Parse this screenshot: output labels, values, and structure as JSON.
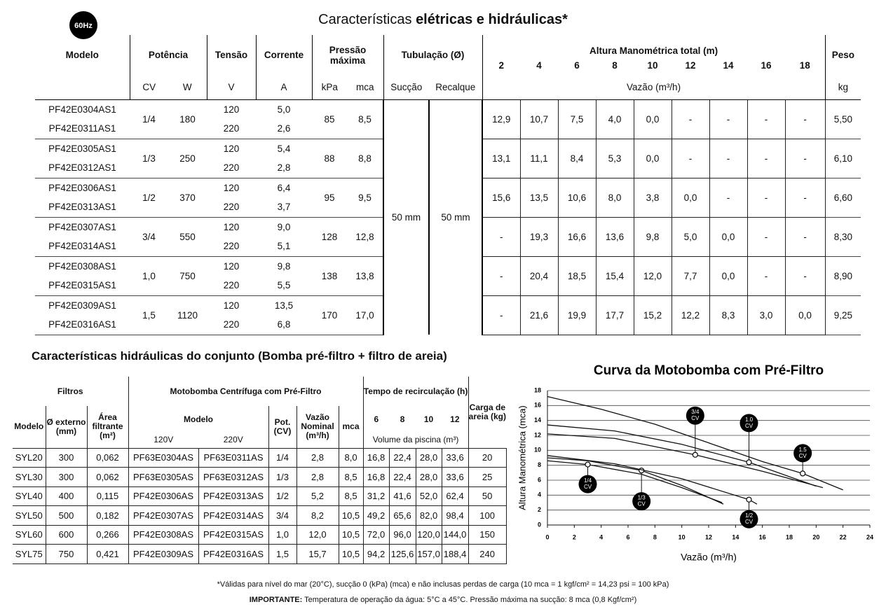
{
  "badge": "60Hz",
  "title": {
    "text": "Características",
    "bold": "elétricas e hidráulicas*"
  },
  "table1": {
    "headers": {
      "model": "Modelo",
      "power": "Potência",
      "voltage": "Tensão",
      "current": "Corrente",
      "pressure": "Pressão máxima",
      "pipe": "Tubulação (Ø)",
      "head": "Altura Manométrica total (m)",
      "weight": "Peso"
    },
    "heights": [
      2,
      4,
      6,
      8,
      10,
      12,
      14,
      16,
      18
    ],
    "units": {
      "cv": "CV",
      "w": "W",
      "v": "V",
      "a": "A",
      "kpa": "kPa",
      "mca": "mca",
      "suction": "Sucção",
      "discharge": "Recalque",
      "flow": "Vazão (m³/h)",
      "kg": "kg"
    },
    "pipe": {
      "suction": "50 mm",
      "discharge": "50 mm"
    },
    "rows": [
      {
        "models": [
          "PF42E0304AS1",
          "PF42E0311AS1"
        ],
        "cv": "1/4",
        "w": "180",
        "v": [
          "120",
          "220"
        ],
        "a": [
          "5,0",
          "2,6"
        ],
        "kpa": "85",
        "mca": "8,5",
        "flow": [
          "12,9",
          "10,7",
          "7,5",
          "4,0",
          "0,0",
          "-",
          "-",
          "-",
          "-"
        ],
        "weight": "5,50"
      },
      {
        "models": [
          "PF42E0305AS1",
          "PF42E0312AS1"
        ],
        "cv": "1/3",
        "w": "250",
        "v": [
          "120",
          "220"
        ],
        "a": [
          "5,4",
          "2,8"
        ],
        "kpa": "88",
        "mca": "8,8",
        "flow": [
          "13,1",
          "11,1",
          "8,4",
          "5,3",
          "0,0",
          "-",
          "-",
          "-",
          "-"
        ],
        "weight": "6,10"
      },
      {
        "models": [
          "PF42E0306AS1",
          "PF42E0313AS1"
        ],
        "cv": "1/2",
        "w": "370",
        "v": [
          "120",
          "220"
        ],
        "a": [
          "6,4",
          "3,7"
        ],
        "kpa": "95",
        "mca": "9,5",
        "flow": [
          "15,6",
          "13,5",
          "10,6",
          "8,0",
          "3,8",
          "0,0",
          "-",
          "-",
          "-"
        ],
        "weight": "6,60"
      },
      {
        "models": [
          "PF42E0307AS1",
          "PF42E0314AS1"
        ],
        "cv": "3/4",
        "w": "550",
        "v": [
          "120",
          "220"
        ],
        "a": [
          "9,0",
          "5,1"
        ],
        "kpa": "128",
        "mca": "12,8",
        "flow": [
          "-",
          "19,3",
          "16,6",
          "13,6",
          "9,8",
          "5,0",
          "0,0",
          "-",
          "-"
        ],
        "weight": "8,30"
      },
      {
        "models": [
          "PF42E0308AS1",
          "PF42E0315AS1"
        ],
        "cv": "1,0",
        "w": "750",
        "v": [
          "120",
          "220"
        ],
        "a": [
          "9,8",
          "5,5"
        ],
        "kpa": "138",
        "mca": "13,8",
        "flow": [
          "-",
          "20,4",
          "18,5",
          "15,4",
          "12,0",
          "7,7",
          "0,0",
          "-",
          "-"
        ],
        "weight": "8,90"
      },
      {
        "models": [
          "PF42E0309AS1",
          "PF42E0316AS1"
        ],
        "cv": "1,5",
        "w": "1120",
        "v": [
          "120",
          "220"
        ],
        "a": [
          "13,5",
          "6,8"
        ],
        "kpa": "170",
        "mca": "17,0",
        "flow": [
          "-",
          "21,6",
          "19,9",
          "17,7",
          "15,2",
          "12,2",
          "8,3",
          "3,0",
          "0,0"
        ],
        "weight": "9,25"
      }
    ]
  },
  "table2": {
    "title": "Características hidráulicas do conjunto (Bomba pré-filtro + filtro de areia)",
    "headers": {
      "filters": "Filtros",
      "model": "Modelo",
      "diameter": "Ø externo (mm)",
      "area": "Área filtrante (m²)",
      "pump": "Motobomba Centrífuga com Pré-Filtro",
      "pump_model": "Modelo",
      "v120": "120V",
      "v220": "220V",
      "power": "Pot. (CV)",
      "flow": "Vazão Nominal (m³/h)",
      "mca": "mca",
      "time": "Tempo de recirculação (h)",
      "hours": [
        "6",
        "8",
        "10",
        "12"
      ],
      "volume": "Volume da piscina (m³)",
      "sand": "Carga de areia (kg)"
    },
    "rows": [
      [
        "SYL20",
        "300",
        "0,062",
        "PF63E0304AS",
        "PF63E0311AS",
        "1/4",
        "2,8",
        "8,0",
        "16,8",
        "22,4",
        "28,0",
        "33,6",
        "20"
      ],
      [
        "SYL30",
        "300",
        "0,062",
        "PF63E0305AS",
        "PF63E0312AS",
        "1/3",
        "2,8",
        "8,5",
        "16,8",
        "22,4",
        "28,0",
        "33,6",
        "25"
      ],
      [
        "SYL40",
        "400",
        "0,115",
        "PF42E0306AS",
        "PF42E0313AS",
        "1/2",
        "5,2",
        "8,5",
        "31,2",
        "41,6",
        "52,0",
        "62,4",
        "50"
      ],
      [
        "SYL50",
        "500",
        "0,182",
        "PF42E0307AS",
        "PF42E0314AS",
        "3/4",
        "8,2",
        "10,5",
        "49,2",
        "65,6",
        "82,0",
        "98,4",
        "100"
      ],
      [
        "SYL60",
        "600",
        "0,266",
        "PF42E0308AS",
        "PF42E0315AS",
        "1,0",
        "12,0",
        "10,5",
        "72,0",
        "96,0",
        "120,0",
        "144,0",
        "150"
      ],
      [
        "SYL75",
        "750",
        "0,421",
        "PF42E0309AS",
        "PF42E0316AS",
        "1,5",
        "15,7",
        "10,5",
        "94,2",
        "125,6",
        "157,0",
        "188,4",
        "240"
      ]
    ]
  },
  "chart_data": {
    "type": "line",
    "title": "Curva da Motobomba com Pré-Filtro",
    "x_label": "Vazão (m³/h)",
    "y_label": "Altura Manométrica (mca)",
    "xlim": [
      0,
      24
    ],
    "ylim": [
      0,
      18
    ],
    "xticks": [
      0,
      2,
      4,
      6,
      8,
      10,
      12,
      14,
      16,
      18,
      20,
      22,
      24
    ],
    "yticks": [
      0,
      2,
      4,
      6,
      8,
      10,
      12,
      14,
      16,
      18
    ],
    "grid": true,
    "color": "#111111",
    "series": [
      {
        "name": "1/4 CV",
        "x": [
          0,
          3,
          7,
          10,
          13
        ],
        "values": [
          8.6,
          8.1,
          6.8,
          5.0,
          3.0
        ],
        "marker": {
          "x": 3,
          "y": 8.1
        }
      },
      {
        "name": "1/3 CV",
        "x": [
          0,
          3,
          7,
          10,
          13.1
        ],
        "values": [
          9.0,
          8.6,
          7.3,
          5.3,
          2.8
        ],
        "marker": {
          "x": 7,
          "y": 7.3
        }
      },
      {
        "name": "1/2 CV",
        "x": [
          0,
          5,
          10,
          15,
          15.6
        ],
        "values": [
          9.3,
          8.2,
          6.2,
          3.4,
          2.8
        ],
        "marker": {
          "x": 15,
          "y": 3.4
        }
      },
      {
        "name": "3/4 CV",
        "x": [
          0,
          5,
          11,
          16,
          20.5
        ],
        "values": [
          12.2,
          11.6,
          9.4,
          7.2,
          5.0
        ],
        "marker": {
          "x": 11,
          "y": 9.4
        }
      },
      {
        "name": "1.0 CV",
        "x": [
          0,
          5,
          10,
          15,
          20
        ],
        "values": [
          13.4,
          12.6,
          10.8,
          8.4,
          5.2
        ],
        "marker": {
          "x": 15,
          "y": 8.4
        }
      },
      {
        "name": "1.5 CV",
        "x": [
          0,
          4,
          8,
          12,
          16,
          19,
          22
        ],
        "values": [
          17.2,
          15.5,
          13.5,
          11.0,
          8.5,
          6.9,
          4.7
        ],
        "marker": {
          "x": 19,
          "y": 6.9
        }
      }
    ]
  },
  "footnote": "*Válidas para nível do mar (20°C), sucção 0 (kPa) (mca) e não inclusas perdas de carga (10 mca = 1 kgf/cm² = 14,23 psi = 100 kPa)",
  "important": {
    "label": "IMPORTANTE:",
    "text": "Temperatura de operação da água: 5°C a 45°C. Pressão máxima na sucção: 8 mca (0,8 Kgf/cm²)"
  }
}
